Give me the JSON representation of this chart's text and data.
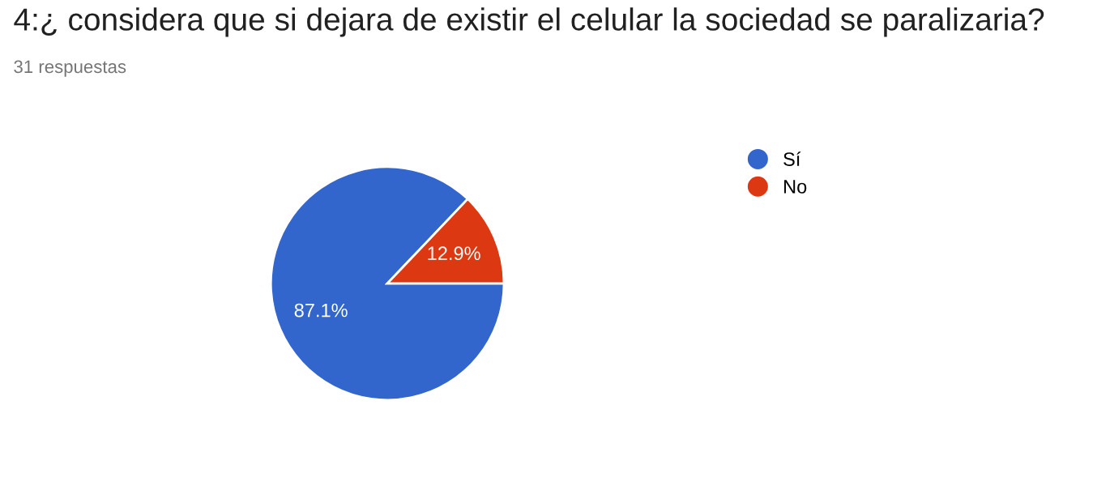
{
  "chart_data": {
    "type": "pie",
    "title": "4:¿ considera que si dejara de existir el celular la sociedad se paralizaria?",
    "subtitle": "31 respuestas",
    "categories": [
      "Sí",
      "No"
    ],
    "values": [
      87.1,
      12.9
    ],
    "colors": [
      "#3366cc",
      "#dc3912"
    ],
    "value_labels": [
      "87.1%",
      "12.9%"
    ],
    "legend": "right"
  }
}
